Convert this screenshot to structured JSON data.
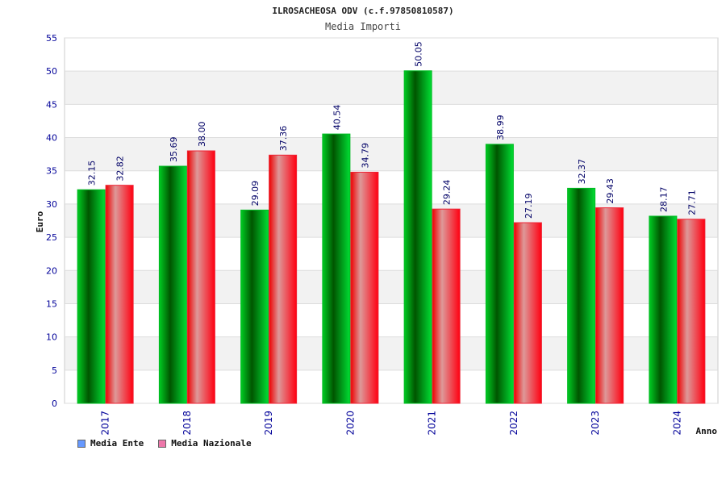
{
  "chart_data": {
    "type": "bar",
    "title": "ILROSACHEOSA ODV (c.f.97850810587)",
    "subtitle": "Media Importi",
    "xlabel": "Anno",
    "ylabel": "Euro",
    "ylim": [
      0,
      55
    ],
    "ytick_step": 5,
    "grid": true,
    "legend_position": "bottom-left",
    "categories": [
      "2017",
      "2018",
      "2019",
      "2020",
      "2021",
      "2022",
      "2023",
      "2024"
    ],
    "series": [
      {
        "name": "Media Ente",
        "values": [
          32.15,
          35.69,
          29.09,
          40.54,
          50.05,
          38.99,
          32.37,
          28.17
        ],
        "color": "#00cc22",
        "legend_color": "#6699ff"
      },
      {
        "name": "Media Nazionale",
        "values": [
          32.82,
          38.0,
          37.36,
          34.79,
          29.24,
          27.19,
          29.43,
          27.71
        ],
        "color": "#ff1122",
        "legend_color": "#ee77aa"
      }
    ],
    "value_labels": [
      [
        "32.15",
        "35.69",
        "29.09",
        "40.54",
        "50.05",
        "38.99",
        "32.37",
        "28.17"
      ],
      [
        "32.82",
        "38.00",
        "37.36",
        "34.79",
        "29.24",
        "27.19",
        "29.43",
        "27.71"
      ]
    ]
  }
}
